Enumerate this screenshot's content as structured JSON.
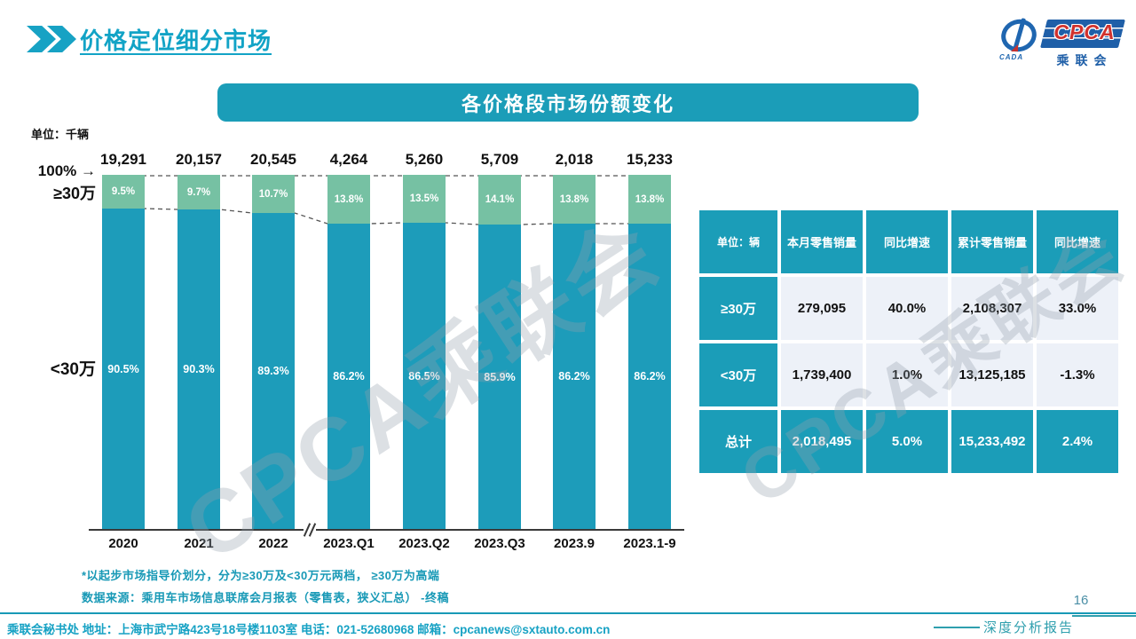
{
  "slide": {
    "title": "价格定位细分市场",
    "banner_title": "各价格段市场份额变化",
    "unit_label": "单位：千辆",
    "footnote1": "*以起步市场指导价划分，分为≥30万及<30万元两档， ≥30万为高端",
    "footnote2": "数据来源：乘用车市场信息联席会月报表（零售表，狭义汇总） -终稿",
    "footer": "乘联会秘书处  地址：上海市武宁路423号18号楼1103室 电话：021-52680968  邮箱：cpcanews@sxtauto.com.cn",
    "page_number": "16",
    "report_type": "深度分析报告",
    "watermark": "CPCA乘联会"
  },
  "logo": {
    "cpca": "CPCA",
    "cada": "CADA",
    "chinese": "乘联会"
  },
  "axis": {
    "top_label": "100%",
    "arrow": "→",
    "upper_segment": "≥30万",
    "lower_segment": "<30万"
  },
  "chart_data": {
    "type": "bar",
    "stacked": true,
    "title": "各价格段市场份额变化",
    "unit": "单位：千辆",
    "categories": [
      "2020",
      "2021",
      "2022",
      "2023.Q1",
      "2023.Q2",
      "2023.Q3",
      "2023.9",
      "2023.1-9"
    ],
    "totals": [
      "19,291",
      "20,157",
      "20,545",
      "4,264",
      "5,260",
      "5,709",
      "2,018",
      "15,233"
    ],
    "series": [
      {
        "name": "≥30万",
        "color": "#76c1a3",
        "values": [
          9.5,
          9.7,
          10.7,
          13.8,
          13.5,
          14.1,
          13.8,
          13.8
        ]
      },
      {
        "name": "<30万",
        "color": "#1d9cba",
        "values": [
          90.5,
          90.3,
          89.3,
          86.2,
          86.5,
          85.9,
          86.2,
          86.2
        ]
      }
    ],
    "ylabel": "",
    "xlabel": "",
    "ylim": [
      0,
      100
    ],
    "axis_break_after": "2022",
    "legend_position": "left-axis",
    "grid": false
  },
  "table": {
    "header": [
      "单位：辆",
      "本月零售销量",
      "同比增速",
      "累计零售销量",
      "同比增速"
    ],
    "rows": [
      {
        "label": "≥30万",
        "cells": [
          "279,095",
          "40.0%",
          "2,108,307",
          "33.0%"
        ],
        "total": false
      },
      {
        "label": "<30万",
        "cells": [
          "1,739,400",
          "1.0%",
          "13,125,185",
          "-1.3%"
        ],
        "total": false
      },
      {
        "label": "总计",
        "cells": [
          "2,018,495",
          "5.0%",
          "15,233,492",
          "2.4%"
        ],
        "total": true
      }
    ]
  },
  "colors": {
    "accent": "#17a2c4",
    "teal": "#1b9db8",
    "green": "#76c1a3",
    "row_light": "#edf1f8",
    "axis": "#3a3a3a"
  }
}
